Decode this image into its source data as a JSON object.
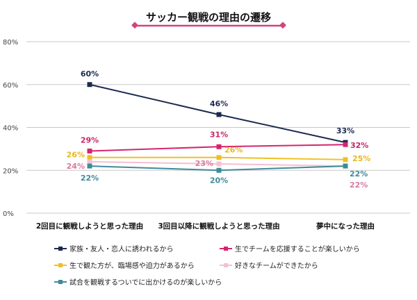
{
  "chart_data": {
    "type": "line",
    "title": "サッカー観戦の理由の遷移",
    "categories": [
      "2回目に観戦しようと思った理由",
      "3回目以降に観戦しようと思った理由",
      "夢中になった理由"
    ],
    "ylim": [
      0,
      80
    ],
    "yticks": [
      0,
      20,
      40,
      60,
      80
    ],
    "ytick_labels": [
      "0%",
      "20%",
      "40%",
      "60%",
      "80%"
    ],
    "grid": true,
    "legend_placement": "bottom",
    "title_decoration_color": "#d0457a",
    "series": [
      {
        "name": "家族・友人・恋人に誘われるから",
        "color": "#1b2a4e",
        "label_color": "#1b2a4e",
        "values": [
          60,
          46,
          33
        ],
        "labels": [
          "60%",
          "46%",
          "33%"
        ]
      },
      {
        "name": "生でチームを応援することが楽しいから",
        "color": "#d6246e",
        "label_color": "#c8246a",
        "values": [
          29,
          31,
          32
        ],
        "labels": [
          "29%",
          "31%",
          "32%"
        ]
      },
      {
        "name": "生で観た方が、臨場感や迫力があるから",
        "color": "#f0c020",
        "label_color": "#e8b820",
        "values": [
          26,
          26,
          25
        ],
        "labels": [
          "26%",
          "26%",
          "25%"
        ]
      },
      {
        "name": "好きなチームができたから",
        "color": "#f4c0d2",
        "label_color": "#d87aa0",
        "values": [
          24,
          23,
          22
        ],
        "labels": [
          "24%",
          "23%",
          "22%"
        ]
      },
      {
        "name": "試合を観戦するついでに出かけるのが楽しいから",
        "color": "#3f8a99",
        "label_color": "#3f8a99",
        "values": [
          22,
          20,
          22
        ],
        "labels": [
          "22%",
          "20%",
          "22%"
        ]
      }
    ]
  }
}
